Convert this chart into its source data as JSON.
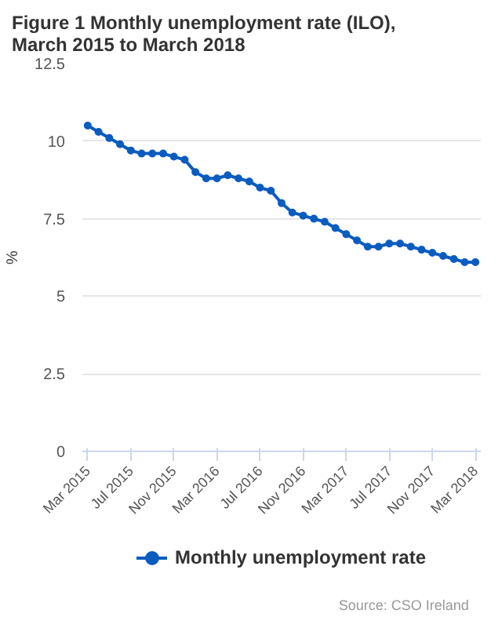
{
  "chart_data": {
    "type": "line",
    "title": "Figure 1 Monthly unemployment rate (ILO), March 2015 to March 2018",
    "ylabel": "%",
    "categories": [
      "Mar 2015",
      null,
      null,
      null,
      "Jul 2015",
      null,
      null,
      null,
      "Nov 2015",
      null,
      null,
      null,
      "Mar 2016",
      null,
      null,
      null,
      "Jul 2016",
      null,
      null,
      null,
      "Nov 2016",
      null,
      null,
      null,
      "Mar 2017",
      null,
      null,
      null,
      "Jul 2017",
      null,
      null,
      null,
      "Nov 2017",
      null,
      null,
      null,
      "Mar 2018"
    ],
    "series": [
      {
        "name": "Monthly unemployment rate",
        "color": "#0b5cbf",
        "values": [
          10.5,
          10.3,
          10.1,
          9.9,
          9.7,
          9.6,
          9.6,
          9.6,
          9.5,
          9.4,
          9.0,
          8.8,
          8.8,
          8.9,
          8.8,
          8.7,
          8.5,
          8.4,
          8.0,
          7.7,
          7.6,
          7.5,
          7.4,
          7.2,
          7.0,
          6.8,
          6.6,
          6.6,
          6.7,
          6.7,
          6.6,
          6.5,
          6.4,
          6.3,
          6.2,
          6.1,
          6.1
        ]
      }
    ],
    "ylim": [
      0,
      12.5
    ],
    "yticks": [
      0,
      2.5,
      5,
      7.5,
      10,
      12.5
    ],
    "grid": "y",
    "legend": "bottom",
    "marker": "circle",
    "line_style": "solid",
    "annotations": [
      "Source: CSO Ireland"
    ]
  }
}
